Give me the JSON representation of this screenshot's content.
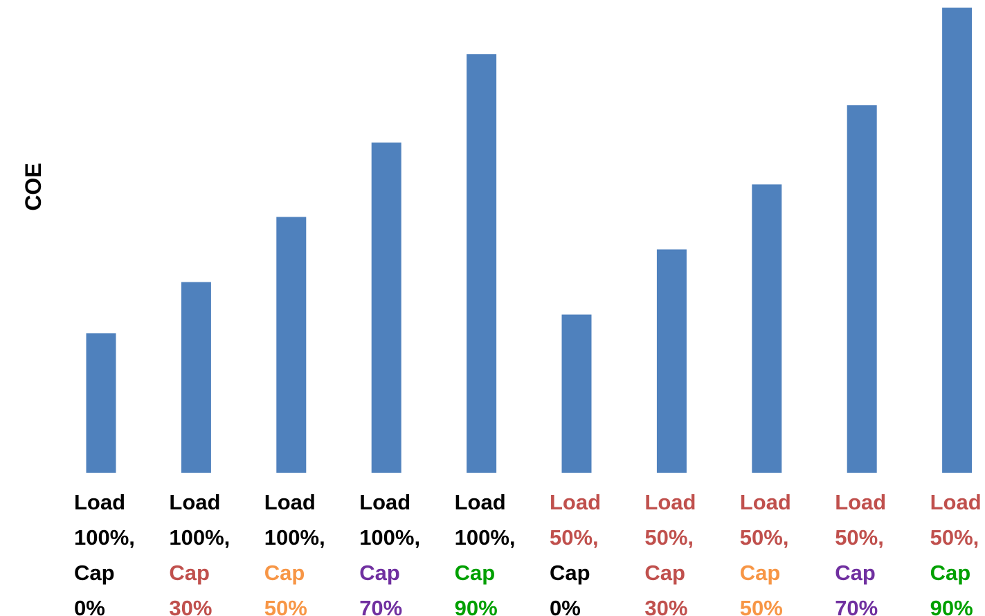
{
  "chart_data": {
    "type": "bar",
    "ylabel": "COE",
    "xlabel": "",
    "title": "",
    "ylim": [
      0,
      100
    ],
    "grid": false,
    "bar_color": "#4f81bd",
    "categories": [
      {
        "load": "Load",
        "load_value": "100%,",
        "cap": "Cap",
        "cap_value": "0%",
        "load_color": "#000000",
        "cap_color": "#000000"
      },
      {
        "load": "Load",
        "load_value": "100%,",
        "cap": "Cap",
        "cap_value": "30%",
        "load_color": "#000000",
        "cap_color": "#c0504d"
      },
      {
        "load": "Load",
        "load_value": "100%,",
        "cap": "Cap",
        "cap_value": "50%",
        "load_color": "#000000",
        "cap_color": "#f79646"
      },
      {
        "load": "Load",
        "load_value": "100%,",
        "cap": "Cap",
        "cap_value": "70%",
        "load_color": "#000000",
        "cap_color": "#7030a0"
      },
      {
        "load": "Load",
        "load_value": "100%,",
        "cap": "Cap",
        "cap_value": "90%",
        "load_color": "#000000",
        "cap_color": "#00a000"
      },
      {
        "load": "Load",
        "load_value": "50%,",
        "cap": "Cap",
        "cap_value": "0%",
        "load_color": "#c0504d",
        "cap_color": "#000000"
      },
      {
        "load": "Load",
        "load_value": "50%,",
        "cap": "Cap",
        "cap_value": "30%",
        "load_color": "#c0504d",
        "cap_color": "#c0504d"
      },
      {
        "load": "Load",
        "load_value": "50%,",
        "cap": "Cap",
        "cap_value": "50%",
        "load_color": "#c0504d",
        "cap_color": "#f79646"
      },
      {
        "load": "Load",
        "load_value": "50%,",
        "cap": "Cap",
        "cap_value": "70%",
        "load_color": "#c0504d",
        "cap_color": "#7030a0"
      },
      {
        "load": "Load",
        "load_value": "50%,",
        "cap": "Cap",
        "cap_value": "90%",
        "load_color": "#c0504d",
        "cap_color": "#00a000"
      }
    ],
    "values": [
      30,
      41,
      55,
      71,
      90,
      34,
      48,
      62,
      79,
      100
    ]
  }
}
